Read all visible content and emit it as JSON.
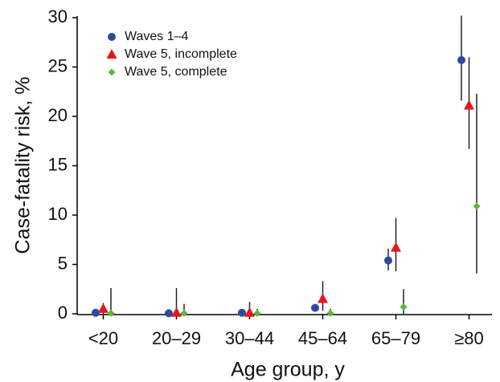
{
  "chart_data": {
    "type": "errorpoint",
    "y_label": "Case-fatality risk, %",
    "x_label": "Age group, y",
    "categories": [
      "<20",
      "20–29",
      "30–44",
      "45–64",
      "65–79",
      "≥80"
    ],
    "ylim": [
      0,
      30
    ],
    "yticks": [
      0,
      5,
      10,
      15,
      20,
      25,
      30
    ],
    "series": [
      {
        "name": "Waves 1–4",
        "color": "#2e4a9e",
        "marker": "circle",
        "values": [
          0.1,
          0.05,
          0.1,
          0.6,
          5.4,
          25.7
        ],
        "ci_low": [
          0,
          0,
          0,
          0.4,
          4.4,
          21.6
        ],
        "ci_high": [
          0.5,
          0.2,
          0.3,
          0.9,
          6.6,
          30.2
        ]
      },
      {
        "name": "Wave 5, incomplete",
        "color": "#e8151b",
        "marker": "triangle",
        "values": [
          0.5,
          0.1,
          0.1,
          1.5,
          6.7,
          21.1
        ],
        "ci_low": [
          0,
          0,
          0,
          0.3,
          4.3,
          16.7
        ],
        "ci_high": [
          1.1,
          2.6,
          1.2,
          3.3,
          9.7,
          26.0
        ]
      },
      {
        "name": "Wave 5, complete",
        "color": "#5cb83a",
        "marker": "diamond",
        "values": [
          0.05,
          0.05,
          0.05,
          0.05,
          0.7,
          10.9
        ],
        "ci_low": [
          0,
          0,
          0,
          0,
          0,
          4.1
        ],
        "ci_high": [
          2.6,
          1.0,
          0.5,
          0.5,
          2.5,
          22.3
        ]
      }
    ]
  }
}
